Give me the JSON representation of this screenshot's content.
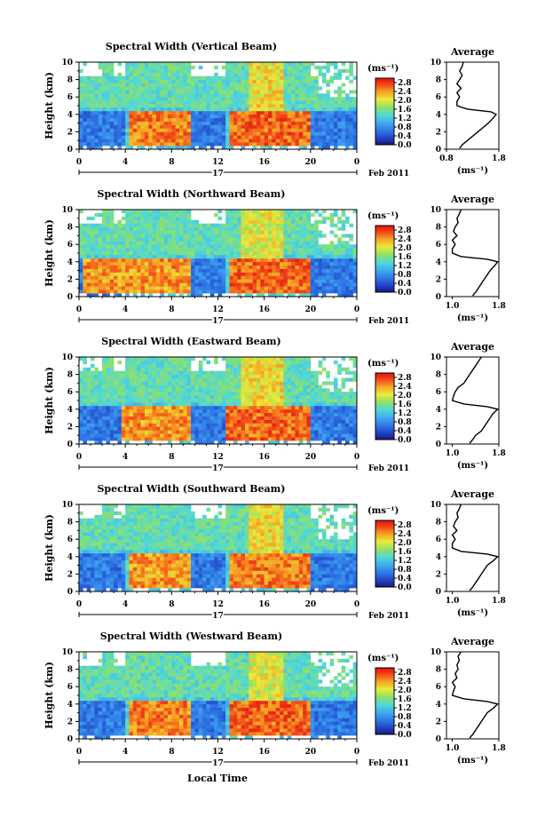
{
  "figure": {
    "date_label": "Feb 2011",
    "day_label": "17",
    "xlabel": "Local Time",
    "ylabel": "Height (km)",
    "colorbar_unit": "(ms⁻¹)",
    "avg_title": "Average",
    "avg_xlabel": "(ms⁻¹)"
  },
  "chart_data": [
    {
      "type": "heatmap",
      "title": "Spectral Width (Vertical Beam)",
      "xlabel": "Local Time",
      "ylabel": "Height (km)",
      "x_ticks": [
        "0",
        "4",
        "8",
        "12",
        "16",
        "20",
        "0"
      ],
      "y_ticks": [
        "0",
        "2",
        "4",
        "6",
        "8",
        "10"
      ],
      "xlim": [
        0,
        24
      ],
      "ylim": [
        0,
        10
      ],
      "colorbar": {
        "unit": "(ms⁻¹)",
        "range": [
          0,
          3.0
        ],
        "ticks": [
          "0.0",
          "0.4",
          "0.8",
          "1.2",
          "1.6",
          "2.0",
          "2.4",
          "2.8"
        ]
      },
      "high_regions": [
        {
          "t0": 4.5,
          "t1": 9.5,
          "h0": 0.5,
          "h1": 4.5,
          "value": 2.8
        },
        {
          "t0": 13,
          "t1": 20,
          "h0": 0.5,
          "h1": 4.5,
          "value": 2.9
        },
        {
          "t0": 14.5,
          "t1": 17.5,
          "h0": 4.5,
          "h1": 10,
          "value": 2.4
        }
      ],
      "average_profile": {
        "title": "Average",
        "xlabel": "(ms⁻¹)",
        "x_ticks": [
          "0.8",
          "1.8"
        ],
        "xlim": [
          0.8,
          1.8
        ],
        "y_ticks": [
          "0",
          "2",
          "4",
          "6",
          "8",
          "10"
        ],
        "ylim": [
          0,
          10
        ],
        "height": [
          0.1,
          0.5,
          1.0,
          1.5,
          2.0,
          2.5,
          3.0,
          3.5,
          4.0,
          4.3,
          4.6,
          5.0,
          5.5,
          6.0,
          6.5,
          7.0,
          7.5,
          8.0,
          8.5,
          9.0,
          9.5,
          10.0
        ],
        "value": [
          1.05,
          1.1,
          1.2,
          1.3,
          1.4,
          1.5,
          1.6,
          1.68,
          1.75,
          1.65,
          1.2,
          1.0,
          1.0,
          1.05,
          1.0,
          1.08,
          1.0,
          1.05,
          1.1,
          1.05,
          1.1,
          1.12
        ]
      }
    },
    {
      "type": "heatmap",
      "title": "Spectral Width (Northward Beam)",
      "xlabel": "Local Time",
      "ylabel": "Height (km)",
      "x_ticks": [
        "0",
        "4",
        "8",
        "12",
        "16",
        "20",
        "0"
      ],
      "y_ticks": [
        "0",
        "2",
        "4",
        "6",
        "8",
        "10"
      ],
      "xlim": [
        0,
        24
      ],
      "ylim": [
        0,
        10
      ],
      "colorbar": {
        "unit": "(ms⁻¹)",
        "range": [
          0,
          3.0
        ],
        "ticks": [
          "0.0",
          "0.4",
          "0.8",
          "1.2",
          "1.6",
          "2.0",
          "2.4",
          "2.8"
        ]
      },
      "high_regions": [
        {
          "t0": 0.5,
          "t1": 9.5,
          "h0": 0.5,
          "h1": 4.5,
          "value": 2.7
        },
        {
          "t0": 13,
          "t1": 20,
          "h0": 0.5,
          "h1": 4.5,
          "value": 2.9
        },
        {
          "t0": 14,
          "t1": 17.5,
          "h0": 4.5,
          "h1": 10,
          "value": 2.3
        }
      ],
      "average_profile": {
        "title": "Average",
        "xlabel": "(ms⁻¹)",
        "x_ticks": [
          "1.0",
          "1.8"
        ],
        "xlim": [
          0.9,
          1.8
        ],
        "y_ticks": [
          "0",
          "2",
          "4",
          "6",
          "8",
          "10"
        ],
        "ylim": [
          0,
          10
        ],
        "height": [
          0.1,
          0.5,
          1.0,
          1.5,
          2.0,
          2.5,
          3.0,
          3.5,
          4.0,
          4.3,
          4.6,
          5.0,
          5.5,
          6.0,
          6.5,
          7.0,
          7.5,
          8.0,
          8.5,
          9.0,
          9.5,
          10.0
        ],
        "value": [
          1.35,
          1.4,
          1.45,
          1.5,
          1.55,
          1.6,
          1.65,
          1.72,
          1.78,
          1.6,
          1.15,
          1.0,
          1.0,
          1.05,
          1.0,
          1.08,
          1.02,
          1.05,
          1.1,
          1.08,
          1.12,
          1.15
        ]
      }
    },
    {
      "type": "heatmap",
      "title": "Spectral Width (Eastward Beam)",
      "xlabel": "Local Time",
      "ylabel": "Height (km)",
      "x_ticks": [
        "0",
        "4",
        "8",
        "12",
        "16",
        "20",
        "0"
      ],
      "y_ticks": [
        "0",
        "2",
        "4",
        "6",
        "8",
        "10"
      ],
      "xlim": [
        0,
        24
      ],
      "ylim": [
        0,
        10
      ],
      "colorbar": {
        "unit": "(ms⁻¹)",
        "range": [
          0,
          3.0
        ],
        "ticks": [
          "0.0",
          "0.4",
          "0.8",
          "1.2",
          "1.6",
          "2.0",
          "2.4",
          "2.8"
        ]
      },
      "high_regions": [
        {
          "t0": 3.5,
          "t1": 9.5,
          "h0": 0.5,
          "h1": 4.5,
          "value": 2.7
        },
        {
          "t0": 12.5,
          "t1": 20,
          "h0": 0.5,
          "h1": 4.5,
          "value": 2.9
        },
        {
          "t0": 14,
          "t1": 17.5,
          "h0": 4.5,
          "h1": 10,
          "value": 2.4
        }
      ],
      "average_profile": {
        "title": "Average",
        "xlabel": "(ms⁻¹)",
        "x_ticks": [
          "1.0",
          "1.8"
        ],
        "xlim": [
          0.9,
          1.8
        ],
        "y_ticks": [
          "0",
          "2",
          "4",
          "6",
          "8",
          "10"
        ],
        "ylim": [
          0,
          10
        ],
        "height": [
          0.1,
          0.5,
          1.0,
          1.5,
          2.0,
          2.5,
          3.0,
          3.5,
          4.0,
          4.3,
          4.6,
          5.0,
          5.5,
          6.0,
          6.5,
          7.0,
          7.5,
          8.0,
          8.5,
          9.0,
          9.5,
          10.0
        ],
        "value": [
          1.3,
          1.35,
          1.4,
          1.5,
          1.55,
          1.6,
          1.65,
          1.7,
          1.78,
          1.6,
          1.2,
          1.0,
          1.02,
          1.05,
          1.1,
          1.2,
          1.25,
          1.3,
          1.35,
          1.4,
          1.45,
          1.5
        ]
      }
    },
    {
      "type": "heatmap",
      "title": "Spectral Width (Southward Beam)",
      "xlabel": "Local Time",
      "ylabel": "Height (km)",
      "x_ticks": [
        "0",
        "4",
        "8",
        "12",
        "16",
        "20",
        "0"
      ],
      "y_ticks": [
        "0",
        "2",
        "4",
        "6",
        "8",
        "10"
      ],
      "xlim": [
        0,
        24
      ],
      "ylim": [
        0,
        10
      ],
      "colorbar": {
        "unit": "(ms⁻¹)",
        "range": [
          0,
          3.0
        ],
        "ticks": [
          "0.0",
          "0.4",
          "0.8",
          "1.2",
          "1.6",
          "2.0",
          "2.4",
          "2.8"
        ]
      },
      "high_regions": [
        {
          "t0": 4.5,
          "t1": 9.5,
          "h0": 0.5,
          "h1": 4.5,
          "value": 2.7
        },
        {
          "t0": 13,
          "t1": 20,
          "h0": 0.5,
          "h1": 4.5,
          "value": 2.8
        },
        {
          "t0": 14.5,
          "t1": 17.5,
          "h0": 4.5,
          "h1": 10,
          "value": 2.4
        }
      ],
      "average_profile": {
        "title": "Average",
        "xlabel": "(ms⁻¹)",
        "x_ticks": [
          "1.0",
          "1.8"
        ],
        "xlim": [
          0.9,
          1.8
        ],
        "y_ticks": [
          "0",
          "2",
          "4",
          "6",
          "8",
          "10"
        ],
        "ylim": [
          0,
          10
        ],
        "height": [
          0.1,
          0.5,
          1.0,
          1.5,
          2.0,
          2.5,
          3.0,
          3.5,
          4.0,
          4.3,
          4.6,
          5.0,
          5.5,
          6.0,
          6.5,
          7.0,
          7.5,
          8.0,
          8.5,
          9.0,
          9.5,
          10.0
        ],
        "value": [
          1.3,
          1.35,
          1.4,
          1.45,
          1.5,
          1.55,
          1.6,
          1.7,
          1.78,
          1.6,
          1.15,
          1.0,
          1.0,
          1.05,
          1.0,
          1.08,
          1.02,
          1.05,
          1.1,
          1.08,
          1.12,
          1.15
        ]
      }
    },
    {
      "type": "heatmap",
      "title": "Spectral Width (Westward Beam)",
      "xlabel": "Local Time",
      "ylabel": "Height (km)",
      "x_ticks": [
        "0",
        "4",
        "8",
        "12",
        "16",
        "20",
        "0"
      ],
      "y_ticks": [
        "0",
        "2",
        "4",
        "6",
        "8",
        "10"
      ],
      "xlim": [
        0,
        24
      ],
      "ylim": [
        0,
        10
      ],
      "colorbar": {
        "unit": "(ms⁻¹)",
        "range": [
          0,
          3.0
        ],
        "ticks": [
          "0.0",
          "0.4",
          "0.8",
          "1.2",
          "1.6",
          "2.0",
          "2.4",
          "2.8"
        ]
      },
      "high_regions": [
        {
          "t0": 4.5,
          "t1": 9.5,
          "h0": 0.5,
          "h1": 4.5,
          "value": 2.8
        },
        {
          "t0": 13,
          "t1": 20,
          "h0": 0.5,
          "h1": 4.5,
          "value": 2.9
        },
        {
          "t0": 14.5,
          "t1": 17.5,
          "h0": 4.5,
          "h1": 10,
          "value": 2.3
        }
      ],
      "average_profile": {
        "title": "Average",
        "xlabel": "(ms⁻¹)",
        "x_ticks": [
          "1.0",
          "1.8"
        ],
        "xlim": [
          0.9,
          1.8
        ],
        "y_ticks": [
          "0",
          "2",
          "4",
          "6",
          "8",
          "10"
        ],
        "ylim": [
          0,
          10
        ],
        "height": [
          0.1,
          0.5,
          1.0,
          1.5,
          2.0,
          2.5,
          3.0,
          3.5,
          4.0,
          4.3,
          4.6,
          5.0,
          5.5,
          6.0,
          6.5,
          7.0,
          7.5,
          8.0,
          8.5,
          9.0,
          9.5,
          10.0
        ],
        "value": [
          1.3,
          1.35,
          1.4,
          1.45,
          1.5,
          1.55,
          1.6,
          1.7,
          1.78,
          1.6,
          1.2,
          1.0,
          1.02,
          1.05,
          1.0,
          1.08,
          1.05,
          1.1,
          1.08,
          1.12,
          1.1,
          1.15
        ]
      }
    }
  ]
}
